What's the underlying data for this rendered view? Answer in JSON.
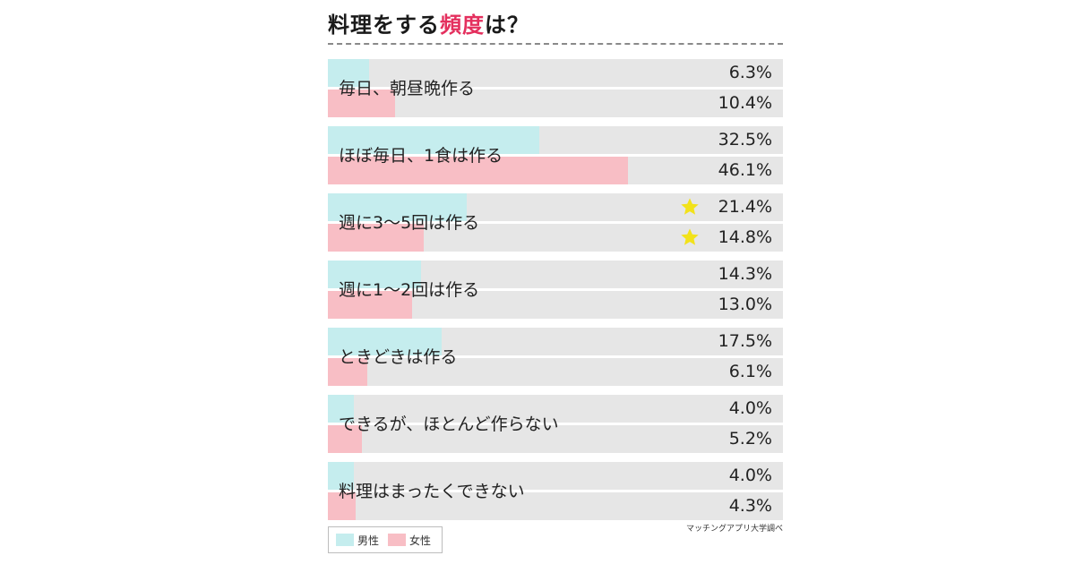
{
  "title": {
    "prefix": "料理をする",
    "highlight": "頻度",
    "suffix": "は？"
  },
  "colors": {
    "male": "#c5edee",
    "female": "#f8bec5",
    "track": "#e6e6e6",
    "highlight": "#e4305e",
    "star": "#f2e21a"
  },
  "legend": {
    "male": "男性",
    "female": "女性"
  },
  "source": "マッチングアプリ大学調べ",
  "chart_data": {
    "type": "bar",
    "orientation": "horizontal",
    "title": "料理をする頻度は？",
    "xlim": [
      0,
      70
    ],
    "categories": [
      "毎日、朝昼晩作る",
      "ほぼ毎日、1食は作る",
      "週に3〜5回は作る",
      "週に1〜2回は作る",
      "ときどきは作る",
      "できるが、ほとんど作らない",
      "料理はまったくできない"
    ],
    "series": [
      {
        "name": "男性",
        "values": [
          6.3,
          32.5,
          21.4,
          14.3,
          17.5,
          4.0,
          4.0
        ],
        "labels": [
          "6.3%",
          "32.5%",
          "21.4%",
          "14.3%",
          "17.5%",
          "4.0%",
          "4.0%"
        ]
      },
      {
        "name": "女性",
        "values": [
          10.4,
          46.1,
          14.8,
          13.0,
          6.1,
          5.2,
          4.3
        ],
        "labels": [
          "10.4%",
          "46.1%",
          "14.8%",
          "13.0%",
          "6.1%",
          "5.2%",
          "4.3%"
        ]
      }
    ],
    "starred_category_index": 2,
    "legend_position": "bottom-left"
  }
}
